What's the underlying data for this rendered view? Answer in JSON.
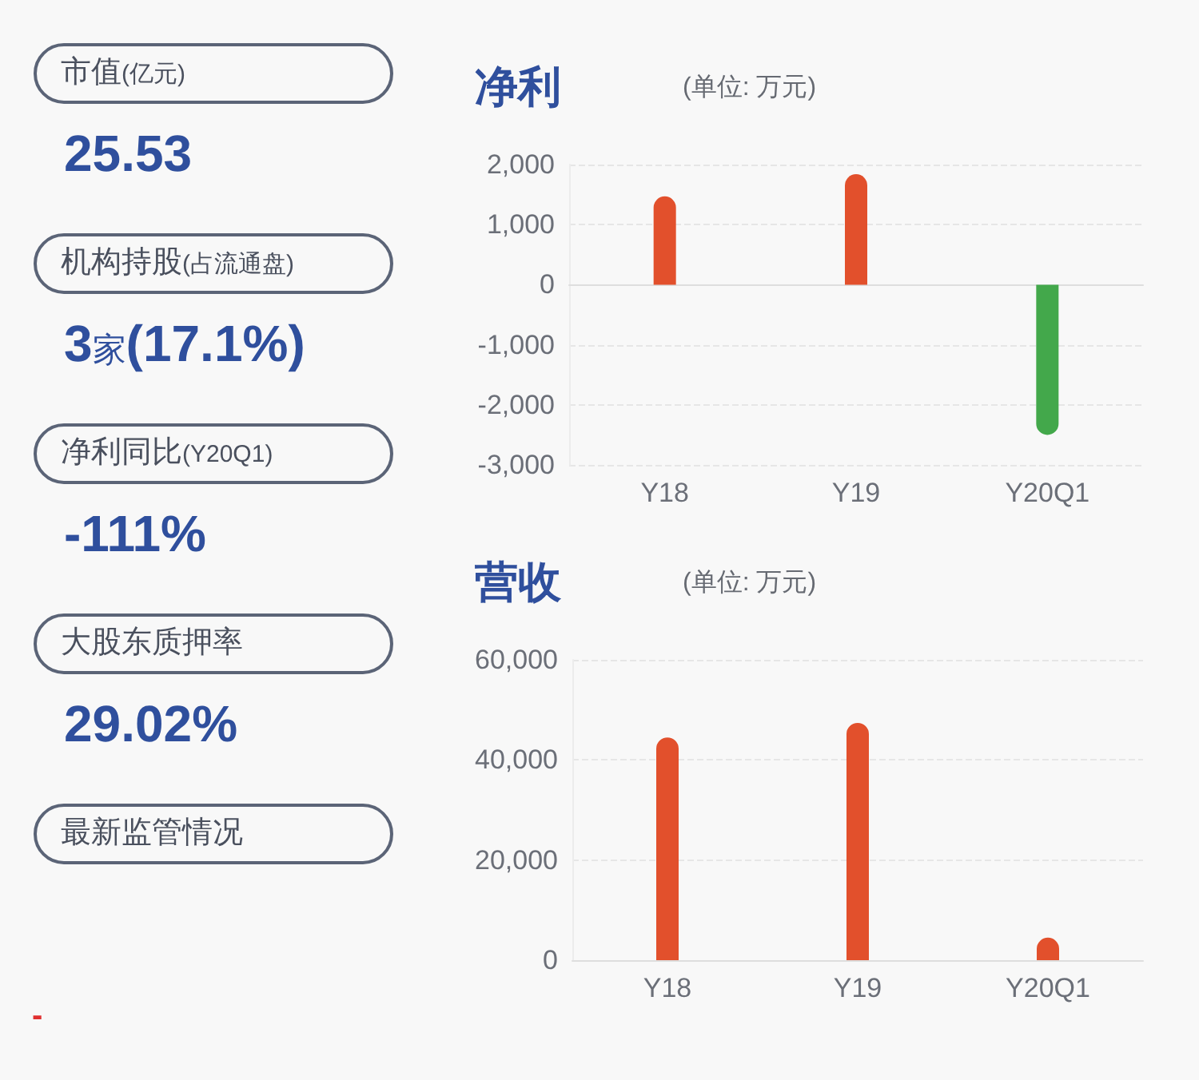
{
  "chart_data": [
    {
      "type": "other",
      "annotations": [
        "市值(亿元)",
        "25.53",
        "机构持股(占流通盘)",
        "3家(17.1%)",
        "净利同比(Y20Q1)",
        "-111%",
        "大股东质押率",
        "29.02%",
        "最新监管情况",
        "-"
      ]
    },
    {
      "type": "bar",
      "title": "净利",
      "subtitle": "(单位: 万元)",
      "categories": [
        "Y18",
        "Y19",
        "Y20Q1"
      ],
      "values": [
        1470,
        1840,
        -2500
      ],
      "colors": [
        "#e2502c",
        "#e2502c",
        "#43a84b"
      ],
      "ylim": [
        -3000,
        2000
      ],
      "yticks": [
        {
          "value": 2000,
          "label": "2,000"
        },
        {
          "value": 1000,
          "label": "1,000"
        },
        0,
        {
          "value": -1000,
          "label": "-1,000"
        },
        {
          "value": -2000,
          "label": "-2,000"
        },
        {
          "value": -3000,
          "label": "-3,000"
        }
      ],
      "grid": "y"
    },
    {
      "type": "bar",
      "title": "营收",
      "subtitle": "(单位: 万元)",
      "categories": [
        "Y18",
        "Y19",
        "Y20Q1"
      ],
      "values": [
        44500,
        47400,
        4500
      ],
      "colors": [
        "#e2502c",
        "#e2502c",
        "#e2502c"
      ],
      "ylim": [
        0,
        60000
      ],
      "yticks": [
        0,
        {
          "value": 20000,
          "label": "20,000"
        },
        {
          "value": 40000,
          "label": "40,000"
        },
        {
          "value": 60000,
          "label": "60,000"
        }
      ],
      "grid": "y"
    }
  ]
}
